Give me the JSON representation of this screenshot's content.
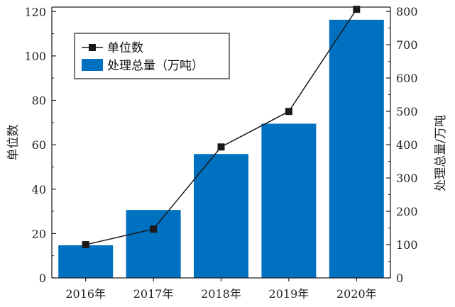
{
  "chart_data": {
    "type": "bar",
    "categories": [
      "2016年",
      "2017年",
      "2018年",
      "2019年",
      "2020年"
    ],
    "series": [
      {
        "name": "处理总量（万吨）",
        "type": "bar",
        "axis": "right",
        "color": "#0070c0",
        "values": [
          98,
          204,
          372,
          463,
          775
        ]
      },
      {
        "name": "单位数",
        "type": "line",
        "axis": "left",
        "color": "#1a1a1a",
        "values": [
          15,
          22,
          59,
          75,
          121
        ]
      }
    ],
    "ylabel": "单位数",
    "y2label": "处理总量/万吨",
    "ylim": [
      0,
      122
    ],
    "y2lim": [
      0,
      813
    ],
    "yticks": [
      0,
      20,
      40,
      60,
      80,
      100,
      120
    ],
    "y2ticks": [
      0,
      100,
      200,
      300,
      400,
      500,
      600,
      700,
      800
    ],
    "legend_position": "top-left",
    "grid": false
  }
}
